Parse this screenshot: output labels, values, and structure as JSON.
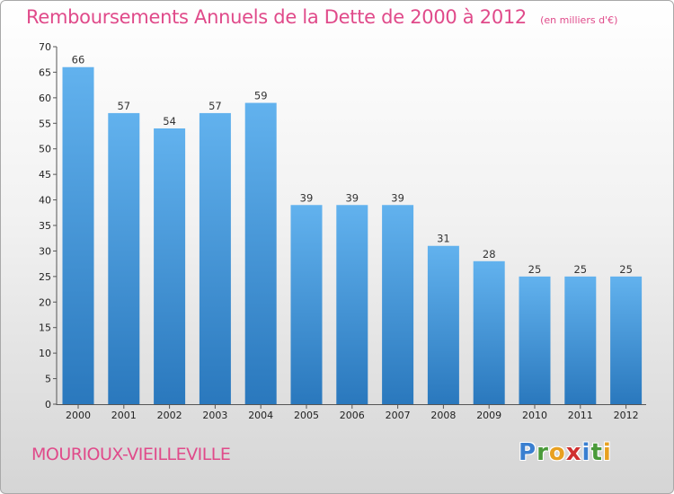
{
  "header": {
    "title": "Remboursements Annuels de la Dette de 2000 à 2012",
    "subtitle": "(en milliers d'€)"
  },
  "footer": {
    "commune": "MOURIOUX-VIEILLEVILLE",
    "logo_letters": [
      {
        "ch": "P",
        "color": "#3a7fd0"
      },
      {
        "ch": "r",
        "color": "#4a9a3a"
      },
      {
        "ch": "o",
        "color": "#e8a020"
      },
      {
        "ch": "x",
        "color": "#d03030"
      },
      {
        "ch": "i",
        "color": "#3a7fd0"
      },
      {
        "ch": "t",
        "color": "#4a9a3a"
      },
      {
        "ch": "i",
        "color": "#e8a020"
      }
    ]
  },
  "colors": {
    "title": "#e04a8a",
    "bar_top": "#62b2ee",
    "bar_bottom": "#2a78bd"
  },
  "chart_data": {
    "type": "bar",
    "title": "Remboursements Annuels de la Dette de 2000 à 2012",
    "subtitle": "(en milliers d'€)",
    "categories": [
      "2000",
      "2001",
      "2002",
      "2003",
      "2004",
      "2005",
      "2006",
      "2007",
      "2008",
      "2009",
      "2010",
      "2011",
      "2012"
    ],
    "values": [
      66,
      57,
      54,
      57,
      59,
      39,
      39,
      39,
      31,
      28,
      25,
      25,
      25
    ],
    "ylim": [
      0,
      70
    ],
    "yticks": [
      0,
      5,
      10,
      15,
      20,
      25,
      30,
      35,
      40,
      45,
      50,
      55,
      60,
      65,
      70
    ],
    "grid": false
  }
}
